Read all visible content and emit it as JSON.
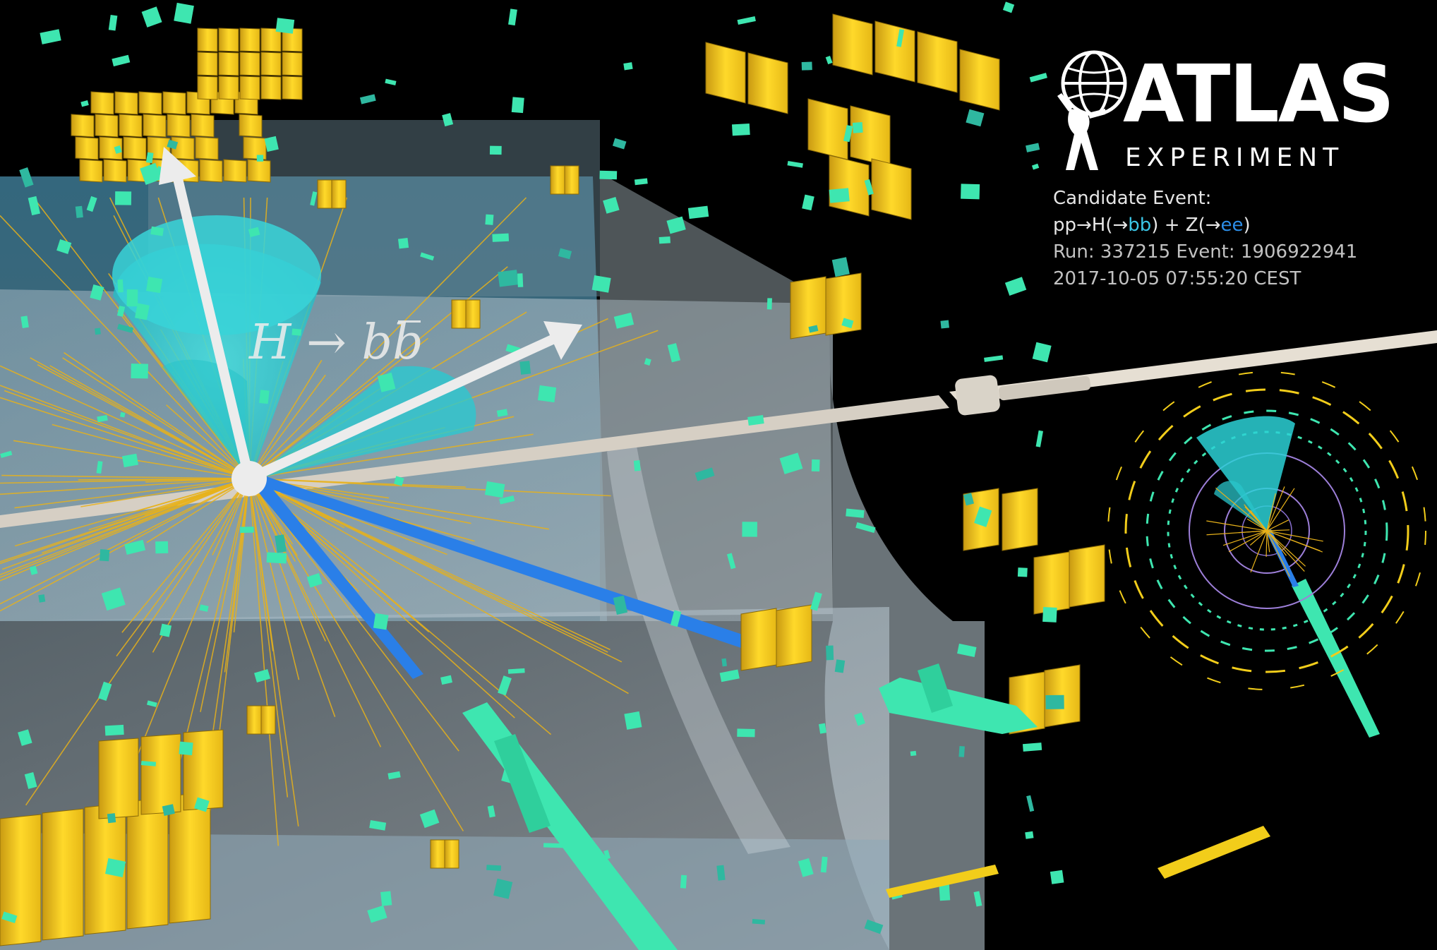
{
  "logo": {
    "name": "ATLAS",
    "subtitle": "EXPERIMENT"
  },
  "event_info": {
    "title": "Candidate Event:",
    "process_prefix": "pp→H(→",
    "process_bb": "bb",
    "process_middle": ") + Z(→",
    "process_ee": "ee",
    "process_suffix": ")",
    "run_event": "Run: 337215 Event: 1906922941",
    "timestamp": "2017-10-05 07:55:20 CEST"
  },
  "annotation": {
    "decay_h": "H",
    "decay_arrow": "→",
    "decay_b": "b",
    "decay_bbar": "b"
  },
  "colors": {
    "background": "#000000",
    "calorimeter_cell": "#f2cd1a",
    "track_hit": "#3ee6b0",
    "jet_cone": "#2bd1d6",
    "electron": "#2a7fe8",
    "charged_track": "#e8b21a",
    "detector_wall": "#b9c4cc",
    "beam_pipe": "#d6cfc4"
  },
  "icons": [
    "atlas-globe-figure-icon"
  ]
}
